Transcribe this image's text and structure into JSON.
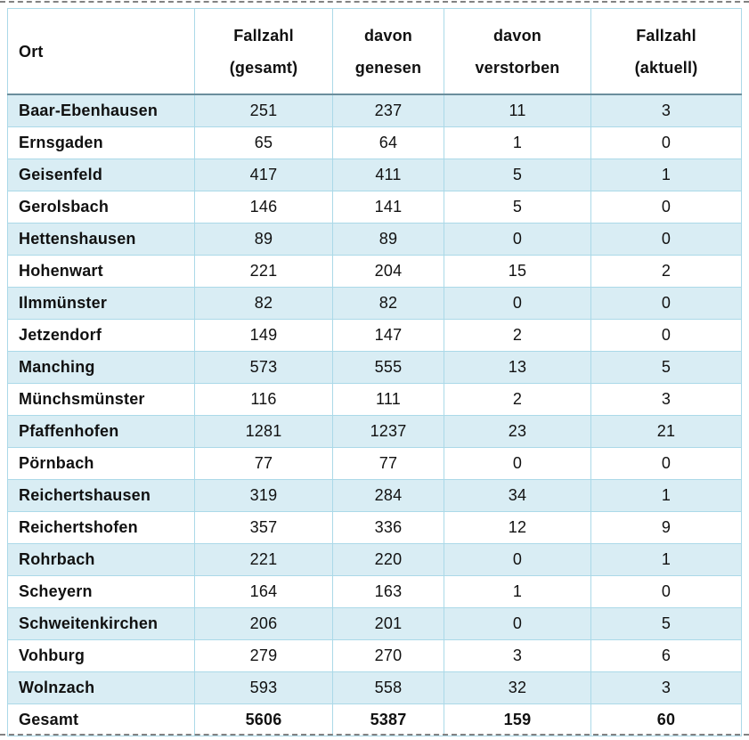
{
  "table": {
    "columns": [
      {
        "label": "Ort"
      },
      {
        "label": "Fallzahl\n(gesamt)"
      },
      {
        "label": "davon\ngenesen"
      },
      {
        "label": "davon\nverstorben"
      },
      {
        "label": "Fallzahl\n(aktuell)"
      }
    ],
    "rows": [
      {
        "ort": "Baar-Ebenhausen",
        "values": [
          "251",
          "237",
          "11",
          "3"
        ],
        "total": false
      },
      {
        "ort": "Ernsgaden",
        "values": [
          "65",
          "64",
          "1",
          "0"
        ],
        "total": false
      },
      {
        "ort": "Geisenfeld",
        "values": [
          "417",
          "411",
          "5",
          "1"
        ],
        "total": false
      },
      {
        "ort": "Gerolsbach",
        "values": [
          "146",
          "141",
          "5",
          "0"
        ],
        "total": false
      },
      {
        "ort": "Hettenshausen",
        "values": [
          "89",
          "89",
          "0",
          "0"
        ],
        "total": false
      },
      {
        "ort": "Hohenwart",
        "values": [
          "221",
          "204",
          "15",
          "2"
        ],
        "total": false
      },
      {
        "ort": "Ilmmünster",
        "values": [
          "82",
          "82",
          "0",
          "0"
        ],
        "total": false
      },
      {
        "ort": "Jetzendorf",
        "values": [
          "149",
          "147",
          "2",
          "0"
        ],
        "total": false
      },
      {
        "ort": "Manching",
        "values": [
          "573",
          "555",
          "13",
          "5"
        ],
        "total": false
      },
      {
        "ort": "Münchsmünster",
        "values": [
          "116",
          "111",
          "2",
          "3"
        ],
        "total": false
      },
      {
        "ort": "Pfaffenhofen",
        "values": [
          "1281",
          "1237",
          "23",
          "21"
        ],
        "total": false
      },
      {
        "ort": "Pörnbach",
        "values": [
          "77",
          "77",
          "0",
          "0"
        ],
        "total": false
      },
      {
        "ort": "Reichertshausen",
        "values": [
          "319",
          "284",
          "34",
          "1"
        ],
        "total": false
      },
      {
        "ort": "Reichertshofen",
        "values": [
          "357",
          "336",
          "12",
          "9"
        ],
        "total": false
      },
      {
        "ort": "Rohrbach",
        "values": [
          "221",
          "220",
          "0",
          "1"
        ],
        "total": false
      },
      {
        "ort": "Scheyern",
        "values": [
          "164",
          "163",
          "1",
          "0"
        ],
        "total": false
      },
      {
        "ort": "Schweitenkirchen",
        "values": [
          "206",
          "201",
          "0",
          "5"
        ],
        "total": false
      },
      {
        "ort": "Vohburg",
        "values": [
          "279",
          "270",
          "3",
          "6"
        ],
        "total": false
      },
      {
        "ort": "Wolnzach",
        "values": [
          "593",
          "558",
          "32",
          "3"
        ],
        "total": false
      },
      {
        "ort": "Gesamt",
        "values": [
          "5606",
          "5387",
          "159",
          "60"
        ],
        "total": true
      }
    ]
  },
  "colors": {
    "row_stripe": "#d9edf4",
    "cell_border": "#abd9e8",
    "header_separator": "#6b8e9c",
    "text": "#111111"
  }
}
